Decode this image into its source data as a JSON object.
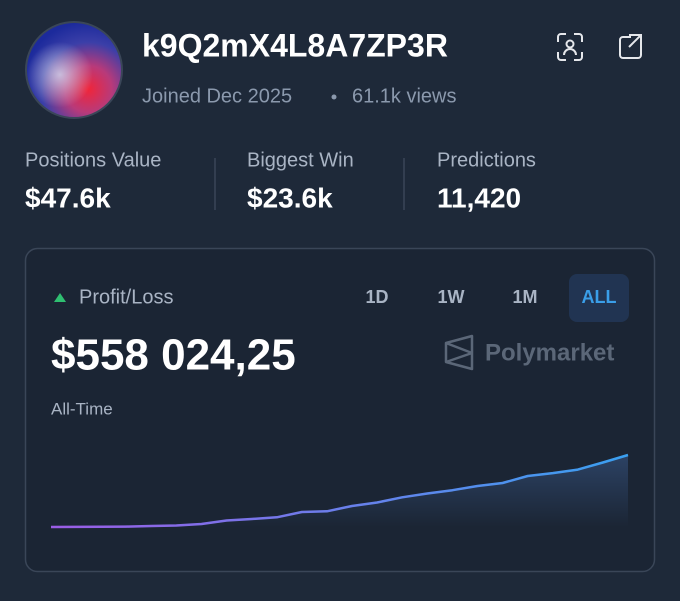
{
  "profile": {
    "name": "k9Q2mX4L8A7ZP3R",
    "joined": "Joined Dec 2025",
    "views": "61.1k views"
  },
  "stats": [
    {
      "label": "Positions Value",
      "value": "$47.6k"
    },
    {
      "label": "Biggest Win",
      "value": "$23.6k"
    },
    {
      "label": "Predictions",
      "value": "11,420"
    }
  ],
  "card": {
    "title": "Profit/Loss",
    "tabs": [
      "1D",
      "1W",
      "1M",
      "ALL"
    ],
    "active_tab": 3,
    "amount": "$558 024,25",
    "period": "All-Time",
    "brand": "Polymarket",
    "sparkline": {
      "type": "line",
      "colors": [
        "#9b5de5",
        "#3aa0f0"
      ],
      "values": [
        0,
        1000,
        2000,
        3000,
        7750,
        12000,
        23000,
        50000,
        62000,
        75000,
        116000,
        122000,
        163000,
        190000,
        230000,
        260000,
        285000,
        318000,
        341000,
        395000,
        418000,
        445000,
        500000,
        558024.25
      ]
    }
  }
}
